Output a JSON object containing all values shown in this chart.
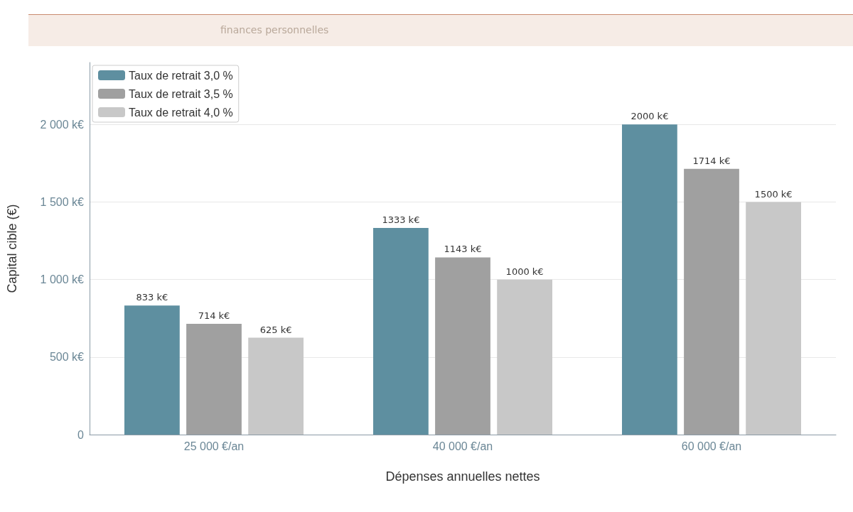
{
  "chart_data": {
    "type": "bar",
    "subtitle": "finances personnelles",
    "xlabel": "Dépenses annuelles nettes",
    "ylabel": "Capital cible (€)",
    "categories": [
      "25 000 €/an",
      "40 000 €/an",
      "60 000 €/an"
    ],
    "series": [
      {
        "name": "Taux de retrait 3,0 %",
        "color": "#5e8fa0",
        "values": [
          833,
          1333,
          2000
        ],
        "value_labels": [
          "833 k€",
          "1333 k€",
          "2000 k€"
        ]
      },
      {
        "name": "Taux de retrait 3,5 %",
        "color": "#a0a0a0",
        "values": [
          714,
          1143,
          1714
        ],
        "value_labels": [
          "714 k€",
          "1143 k€",
          "1714 k€"
        ]
      },
      {
        "name": "Taux de retrait 4,0 %",
        "color": "#c8c8c8",
        "values": [
          625,
          1000,
          1500
        ],
        "value_labels": [
          "625 k€",
          "1000 k€",
          "1500 k€"
        ]
      }
    ],
    "ylim": [
      0,
      2400
    ],
    "yticks": [
      0,
      {
        "value": 500,
        "label": "500 k€"
      },
      {
        "value": 1000,
        "label": "1 000 k€"
      },
      {
        "value": 1500,
        "label": "1 500 k€"
      },
      {
        "value": 2000,
        "label": "2 000 k€"
      }
    ],
    "grid": "y",
    "legend": "top left"
  }
}
